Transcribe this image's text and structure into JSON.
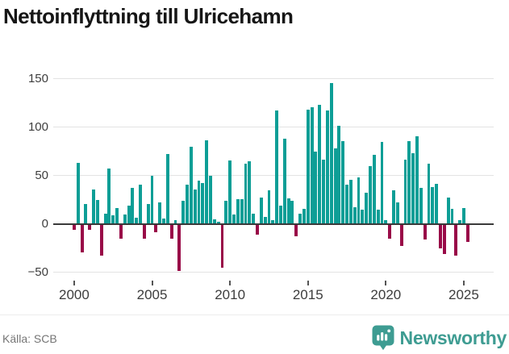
{
  "header": {
    "title": "Nettoinflyttning till Ulricehamn"
  },
  "footer": {
    "source": "Källa: SCB",
    "brand": "Newsworthy"
  },
  "colors": {
    "positive_bar": "#0D9E96",
    "negative_bar": "#990A48",
    "axis_line": "#3A3A3A",
    "gridline": "#E3E3E3",
    "brand_teal": "#3E9C92",
    "tick_text": "#3D3D3D",
    "source_text": "#757575"
  },
  "chart_data": {
    "type": "bar",
    "title": "Nettoinflyttning till Ulricehamn",
    "frequency": "quarterly",
    "x_start": "2000-Q1",
    "x_end": "2025-Q2",
    "x_tick_labels": [
      "2000",
      "2005",
      "2010",
      "2015",
      "2020",
      "2025"
    ],
    "y_ticks": [
      150,
      100,
      50,
      0,
      -50
    ],
    "y_tick_labels": [
      "150",
      "100",
      "50",
      "0",
      "−50"
    ],
    "ylim": [
      -62,
      160
    ],
    "grid": "horizontal",
    "legend": "none",
    "series": [
      {
        "name": "Nettoinflyttning",
        "values": [
          -7,
          63,
          -30,
          20,
          -7,
          35,
          24,
          -33,
          10,
          57,
          8,
          16,
          -16,
          9,
          18,
          37,
          6,
          40,
          -16,
          20,
          49,
          -9,
          22,
          5,
          72,
          -16,
          3,
          -49,
          23,
          40,
          79,
          35,
          44,
          42,
          86,
          49,
          4,
          2,
          -46,
          23,
          65,
          9,
          25,
          25,
          62,
          64,
          10,
          -12,
          27,
          7,
          34,
          3,
          117,
          18,
          88,
          26,
          23,
          -13,
          10,
          15,
          118,
          120,
          74,
          123,
          66,
          117,
          145,
          78,
          101,
          85,
          40,
          45,
          17,
          48,
          14,
          32,
          59,
          71,
          14,
          84,
          3,
          -16,
          34,
          22,
          -23,
          66,
          85,
          73,
          90,
          37,
          -17,
          62,
          38,
          41,
          -26,
          -32,
          27,
          15,
          -33,
          3,
          16,
          -19
        ]
      }
    ]
  }
}
